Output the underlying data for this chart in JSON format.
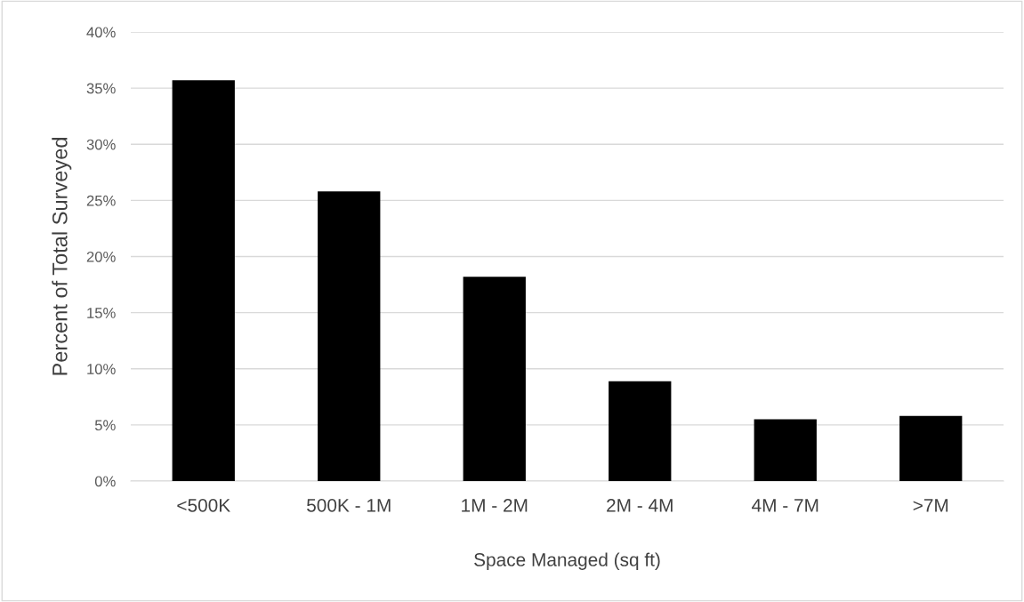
{
  "chart_data": {
    "type": "bar",
    "xlabel": "Space Managed (sq ft)",
    "ylabel": "Percent of Total Surveyed",
    "categories": [
      "<500K",
      "500K - 1M",
      "1M - 2M",
      "2M - 4M",
      "4M - 7M",
      ">7M"
    ],
    "values": [
      35.7,
      25.8,
      18.2,
      8.9,
      5.5,
      5.8
    ],
    "color": "#000000",
    "ylim": [
      0,
      40
    ],
    "yticks": [
      {
        "value": 0,
        "label": "0%"
      },
      {
        "value": 5,
        "label": "5%"
      },
      {
        "value": 10,
        "label": "10%"
      },
      {
        "value": 15,
        "label": "15%"
      },
      {
        "value": 20,
        "label": "20%"
      },
      {
        "value": 25,
        "label": "25%"
      },
      {
        "value": 30,
        "label": "30%"
      },
      {
        "value": 35,
        "label": "35%"
      },
      {
        "value": 40,
        "label": "40%"
      }
    ],
    "grid": "y",
    "legend": false
  }
}
